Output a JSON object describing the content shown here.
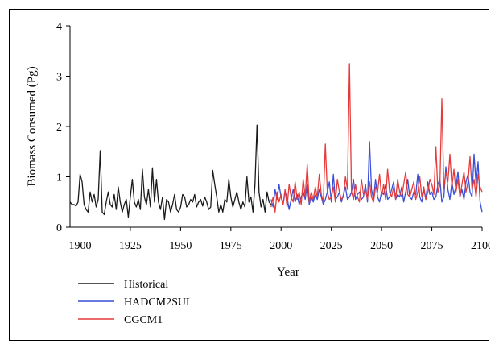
{
  "chart_data": {
    "type": "line",
    "title": "",
    "xlabel": "Year",
    "ylabel": "Biomass Consumed (Pg)",
    "xlim": [
      1895,
      2100
    ],
    "ylim": [
      0,
      4
    ],
    "xticks": [
      1900,
      1925,
      1950,
      1975,
      2000,
      2025,
      2050,
      2075,
      2100
    ],
    "yticks": [
      0,
      1,
      2,
      3,
      4
    ],
    "grid": false,
    "legend_position": "bottom-left",
    "series": [
      {
        "name": "Historical",
        "color": "#1a1a1a",
        "x": [
          1895,
          1896,
          1897,
          1898,
          1899,
          1900,
          1901,
          1902,
          1903,
          1904,
          1905,
          1906,
          1907,
          1908,
          1909,
          1910,
          1911,
          1912,
          1913,
          1914,
          1915,
          1916,
          1917,
          1918,
          1919,
          1920,
          1921,
          1922,
          1923,
          1924,
          1925,
          1926,
          1927,
          1928,
          1929,
          1930,
          1931,
          1932,
          1933,
          1934,
          1935,
          1936,
          1937,
          1938,
          1939,
          1940,
          1941,
          1942,
          1943,
          1944,
          1945,
          1946,
          1947,
          1948,
          1949,
          1950,
          1951,
          1952,
          1953,
          1954,
          1955,
          1956,
          1957,
          1958,
          1959,
          1960,
          1961,
          1962,
          1963,
          1964,
          1965,
          1966,
          1967,
          1968,
          1969,
          1970,
          1971,
          1972,
          1973,
          1974,
          1975,
          1976,
          1977,
          1978,
          1979,
          1980,
          1981,
          1982,
          1983,
          1984,
          1985,
          1986,
          1987,
          1988,
          1989,
          1990,
          1991,
          1992,
          1993,
          1994,
          1995
        ],
        "values": [
          0.5,
          0.45,
          0.45,
          0.42,
          0.5,
          1.05,
          0.9,
          0.45,
          0.35,
          0.3,
          0.7,
          0.5,
          0.65,
          0.4,
          0.55,
          1.52,
          0.3,
          0.25,
          0.5,
          0.7,
          0.45,
          0.4,
          0.65,
          0.35,
          0.8,
          0.5,
          0.3,
          0.45,
          0.55,
          0.2,
          0.6,
          0.95,
          0.5,
          0.4,
          0.55,
          0.35,
          1.15,
          0.6,
          0.45,
          0.75,
          0.4,
          1.18,
          0.5,
          0.95,
          0.5,
          0.35,
          0.6,
          0.15,
          0.55,
          0.5,
          0.3,
          0.45,
          0.65,
          0.35,
          0.3,
          0.4,
          0.65,
          0.6,
          0.4,
          0.45,
          0.55,
          0.5,
          0.65,
          0.4,
          0.5,
          0.55,
          0.42,
          0.6,
          0.5,
          0.35,
          0.4,
          1.13,
          0.85,
          0.6,
          0.3,
          0.45,
          0.3,
          0.55,
          0.5,
          0.95,
          0.6,
          0.4,
          0.55,
          0.7,
          0.5,
          0.35,
          0.5,
          0.4,
          1.0,
          0.5,
          0.6,
          0.3,
          0.85,
          2.03,
          0.7,
          0.4,
          0.55,
          0.3,
          0.7,
          0.5,
          0.45
        ]
      },
      {
        "name": "HADCM2SUL",
        "color": "#3a4fd8",
        "x": [
          1995,
          1996,
          1997,
          1998,
          1999,
          2000,
          2001,
          2002,
          2003,
          2004,
          2005,
          2006,
          2007,
          2008,
          2009,
          2010,
          2011,
          2012,
          2013,
          2014,
          2015,
          2016,
          2017,
          2018,
          2019,
          2020,
          2021,
          2022,
          2023,
          2024,
          2025,
          2026,
          2027,
          2028,
          2029,
          2030,
          2031,
          2032,
          2033,
          2034,
          2035,
          2036,
          2037,
          2038,
          2039,
          2040,
          2041,
          2042,
          2043,
          2044,
          2045,
          2046,
          2047,
          2048,
          2049,
          2050,
          2051,
          2052,
          2053,
          2054,
          2055,
          2056,
          2057,
          2058,
          2059,
          2060,
          2061,
          2062,
          2063,
          2064,
          2065,
          2066,
          2067,
          2068,
          2069,
          2070,
          2071,
          2072,
          2073,
          2074,
          2075,
          2076,
          2077,
          2078,
          2079,
          2080,
          2081,
          2082,
          2083,
          2084,
          2085,
          2086,
          2087,
          2088,
          2089,
          2090,
          2091,
          2092,
          2093,
          2094,
          2095,
          2096,
          2097,
          2098,
          2099,
          2100
        ],
        "values": [
          0.55,
          0.4,
          0.75,
          0.55,
          0.85,
          0.6,
          0.45,
          0.7,
          0.6,
          0.35,
          0.55,
          0.75,
          0.5,
          0.65,
          0.45,
          0.6,
          0.7,
          0.55,
          0.85,
          0.45,
          0.6,
          0.5,
          0.65,
          0.55,
          0.75,
          0.6,
          0.45,
          0.55,
          0.7,
          0.9,
          0.5,
          1.05,
          0.55,
          0.6,
          0.7,
          0.5,
          0.65,
          0.8,
          0.55,
          0.6,
          0.7,
          0.95,
          0.55,
          0.65,
          0.7,
          0.55,
          0.6,
          0.85,
          0.5,
          1.7,
          0.75,
          0.55,
          0.95,
          0.6,
          0.5,
          0.7,
          0.65,
          0.85,
          0.55,
          0.6,
          0.75,
          0.9,
          0.55,
          0.65,
          0.6,
          0.8,
          0.5,
          0.7,
          0.95,
          0.6,
          0.55,
          0.7,
          0.65,
          1.05,
          0.6,
          0.5,
          0.75,
          0.55,
          0.9,
          0.65,
          0.7,
          0.55,
          0.6,
          0.85,
          0.95,
          0.5,
          0.6,
          1.2,
          0.75,
          0.55,
          0.9,
          0.65,
          0.8,
          1.1,
          0.6,
          0.75,
          0.55,
          0.9,
          1.05,
          0.7,
          0.6,
          1.45,
          0.85,
          1.3,
          0.5,
          0.3
        ]
      },
      {
        "name": "CGCM1",
        "color": "#e53a3a",
        "x": [
          1995,
          1996,
          1997,
          1998,
          1999,
          2000,
          2001,
          2002,
          2003,
          2004,
          2005,
          2006,
          2007,
          2008,
          2009,
          2010,
          2011,
          2012,
          2013,
          2014,
          2015,
          2016,
          2017,
          2018,
          2019,
          2020,
          2021,
          2022,
          2023,
          2024,
          2025,
          2026,
          2027,
          2028,
          2029,
          2030,
          2031,
          2032,
          2033,
          2034,
          2035,
          2036,
          2037,
          2038,
          2039,
          2040,
          2041,
          2042,
          2043,
          2044,
          2045,
          2046,
          2047,
          2048,
          2049,
          2050,
          2051,
          2052,
          2053,
          2054,
          2055,
          2056,
          2057,
          2058,
          2059,
          2060,
          2061,
          2062,
          2063,
          2064,
          2065,
          2066,
          2067,
          2068,
          2069,
          2070,
          2071,
          2072,
          2073,
          2074,
          2075,
          2076,
          2077,
          2078,
          2079,
          2080,
          2081,
          2082,
          2083,
          2084,
          2085,
          2086,
          2087,
          2088,
          2089,
          2090,
          2091,
          2092,
          2093,
          2094,
          2095,
          2096,
          2097,
          2098,
          2099,
          2100
        ],
        "values": [
          0.4,
          0.6,
          0.3,
          0.7,
          0.5,
          0.65,
          0.45,
          0.75,
          0.4,
          0.85,
          0.6,
          0.5,
          0.9,
          0.55,
          0.7,
          0.45,
          0.95,
          0.6,
          1.25,
          0.5,
          0.7,
          0.55,
          0.8,
          0.6,
          1.05,
          0.65,
          0.5,
          1.65,
          0.7,
          0.55,
          0.6,
          0.8,
          0.5,
          0.95,
          0.7,
          0.55,
          0.6,
          1.0,
          0.75,
          3.25,
          0.7,
          0.55,
          0.85,
          0.6,
          0.5,
          0.95,
          0.65,
          0.75,
          0.55,
          0.9,
          0.6,
          0.5,
          0.8,
          0.7,
          1.05,
          0.6,
          0.85,
          0.55,
          1.15,
          0.7,
          0.6,
          0.8,
          0.55,
          0.95,
          0.7,
          0.6,
          0.85,
          1.1,
          0.65,
          0.6,
          0.75,
          0.9,
          0.55,
          0.7,
          1.0,
          0.6,
          0.8,
          0.55,
          0.7,
          0.95,
          0.85,
          0.65,
          1.6,
          0.7,
          0.85,
          2.55,
          0.75,
          1.1,
          0.9,
          1.45,
          0.8,
          1.15,
          0.7,
          0.95,
          0.6,
          0.85,
          1.1,
          0.7,
          0.9,
          1.4,
          0.75,
          0.95,
          0.6,
          1.05,
          0.8,
          0.7
        ]
      }
    ]
  }
}
